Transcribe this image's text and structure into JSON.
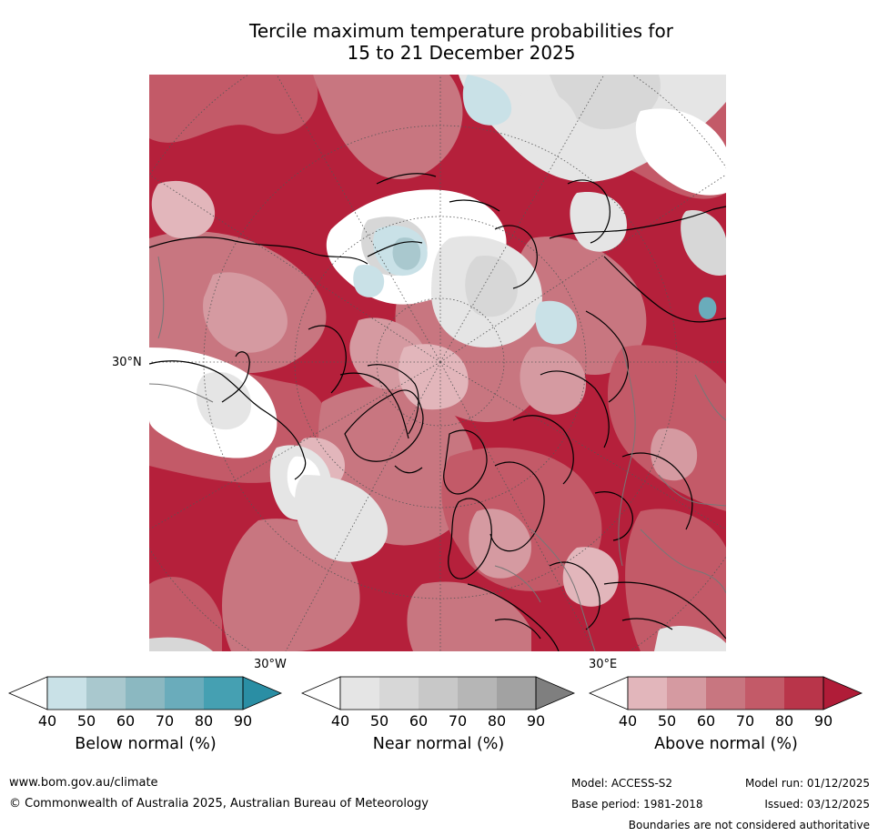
{
  "title": {
    "line1": "Tercile maximum temperature probabilities for",
    "line2": "15 to 21 December 2025"
  },
  "map": {
    "lat_label": "30°N",
    "lon_labels": [
      "30°W",
      "30°E"
    ]
  },
  "colorbars": [
    {
      "name": "below",
      "label": "Below normal (%)",
      "ticks": [
        "40",
        "50",
        "60",
        "70",
        "80",
        "90"
      ],
      "colors": [
        "#ffffff",
        "#c9e1e7",
        "#a9c8ce",
        "#8bb8c1",
        "#6aacbb",
        "#45a0b2",
        "#2a8ea4"
      ]
    },
    {
      "name": "near",
      "label": "Near normal (%)",
      "ticks": [
        "40",
        "50",
        "60",
        "70",
        "80",
        "90"
      ],
      "colors": [
        "#ffffff",
        "#e5e5e5",
        "#d7d7d7",
        "#c8c8c8",
        "#b6b6b6",
        "#a2a2a2",
        "#7f7f7f"
      ]
    },
    {
      "name": "above",
      "label": "Above normal (%)",
      "ticks": [
        "40",
        "50",
        "60",
        "70",
        "80",
        "90"
      ],
      "colors": [
        "#ffffff",
        "#e2b6bb",
        "#d59aa1",
        "#c87680",
        "#c35a68",
        "#b9354a",
        "#b01c38"
      ]
    }
  ],
  "footer": {
    "website": "www.bom.gov.au/climate",
    "copyright": "© Commonwealth of Australia 2025, Australian Bureau of Meteorology",
    "model": "Model: ACCESS-S2",
    "model_run": "Model run: 01/12/2025",
    "base_period": "Base period: 1981-2018",
    "issued": "Issued: 03/12/2025",
    "disclaimer": "Boundaries are not considered authoritative"
  }
}
